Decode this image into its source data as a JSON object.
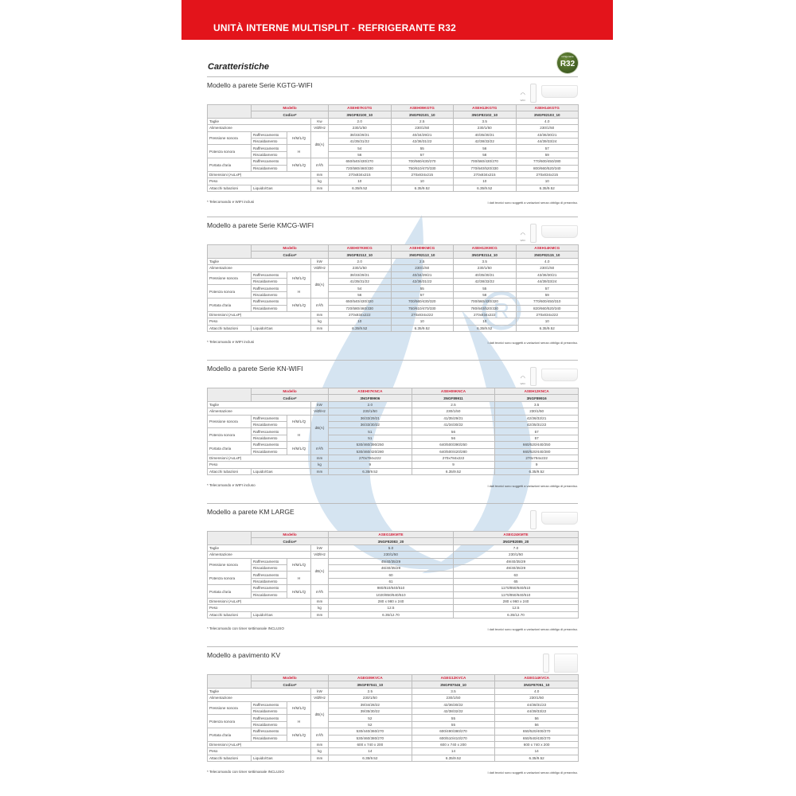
{
  "header": {
    "title": "UNITÀ INTERNE MULTISPLIT - REFRIGERANTE R32"
  },
  "page_title": "Caratteristiche",
  "badge": {
    "top": "refrigerante",
    "text": "R32",
    "color": "#3d5a20"
  },
  "accent_color": "#e3141b",
  "wifi_label": "WIFI",
  "table_header": {
    "modello": "Modello",
    "codice": "Codice*"
  },
  "row_labels": {
    "taglie": "Taglie",
    "alimentazione": "Alimentazione",
    "pressione": "Pressione sonora",
    "potenza": "Potenza sonora",
    "portata": "Portata d'aria",
    "dimensioni": "Dimensioni (AxLxP)",
    "peso": "Peso",
    "attacchi": "Attacchi tubazioni",
    "raff": "Raffrescamento",
    "risc": "Riscaldamento",
    "hmlq": "H/M/L/Q",
    "h": "H",
    "liquido": "Liquido/Gas",
    "u_kw": "kW",
    "u_v": "V/Ø/Hz",
    "u_db": "dB(A)",
    "u_m3": "m³/h",
    "u_mm": "mm",
    "u_kg": "kg"
  },
  "disclaimer": "I dati tecnici sono soggetti a variazioni senza obbligo di preavviso.",
  "sections": [
    {
      "title": "Modello a parete Serie KGTG-WIFI",
      "wifi": true,
      "image": "wall-unit",
      "unit_kw": "Kw",
      "note": "* Telecomando e WIFI inclusi",
      "columns": [
        {
          "model": "ASEH07KGTG",
          "code": "3NGF82100_10",
          "taglia": "2.0",
          "alim": "230/1/50",
          "pr_raff": "38/33/29/21",
          "pr_risc": "41/35/31/22",
          "po_raff": "54",
          "po_risc": "56",
          "pt_raff": "650/540/430/270",
          "pt_risc": "720/580/460/330",
          "dim": "270x834x215",
          "peso": "10",
          "att": "6.35/9.52"
        },
        {
          "model": "ASEH09KGTG",
          "code": "3NGF82101_10",
          "taglia": "2.5",
          "alim": "230/1/50",
          "pr_raff": "40/34/29/21",
          "pr_risc": "42/36/31/22",
          "po_raff": "55",
          "po_risc": "57",
          "pt_raff": "700/560/430/270",
          "pt_risc": "750/610/470/330",
          "dim": "270x834x215",
          "peso": "10",
          "att": "6.35/9.52"
        },
        {
          "model": "ASEH12KGTG",
          "code": "3NGF82102_10",
          "taglia": "3.5",
          "alim": "230/1/50",
          "pr_raff": "40/35/30/21",
          "pr_risc": "42/38/33/22",
          "po_raff": "56",
          "po_risc": "58",
          "pt_raff": "700/560/430/270",
          "pt_risc": "770/640/520/330",
          "dim": "270x834x215",
          "peso": "10",
          "att": "6.35/9.52"
        },
        {
          "model": "ASEH14KGTG",
          "code": "3NGF82103_10",
          "taglia": "4.0",
          "alim": "230/1/50",
          "pr_raff": "43/36/30/21",
          "pr_risc": "44/39/33/24",
          "po_raff": "57",
          "po_risc": "59",
          "pt_raff": "770/600/450/280",
          "pt_risc": "800/660/520/340",
          "dim": "270x834x215",
          "peso": "10",
          "att": "6.35/9.52"
        }
      ]
    },
    {
      "title": "Modello a parete Serie KMCG-WIFI",
      "wifi": true,
      "image": "wall-unit",
      "unit_kw": "kW",
      "note": "* Telecomando e WIFI inclusi",
      "columns": [
        {
          "model": "ASEH07KMCG",
          "code": "3NGF82112_10",
          "taglia": "2.0",
          "alim": "230/1/50",
          "pr_raff": "38/33/29/21",
          "pr_risc": "41/35/31/22",
          "po_raff": "54",
          "po_risc": "56",
          "pt_raff": "650/540/430/320",
          "pt_risc": "720/580/460/330",
          "dim": "270x834x222",
          "peso": "10",
          "att": "6.35/9.52"
        },
        {
          "model": "ASEH09KMCG",
          "code": "3NGF82113_10",
          "taglia": "2.5",
          "alim": "230/1/50",
          "pr_raff": "40/34/29/21",
          "pr_risc": "42/36/31/22",
          "po_raff": "55",
          "po_risc": "57",
          "pt_raff": "700/560/430/320",
          "pt_risc": "750/610/470/330",
          "dim": "270x834x222",
          "peso": "10",
          "att": "6.35/9.52"
        },
        {
          "model": "ASEH12KMCG",
          "code": "3NGF82114_10",
          "taglia": "3.5",
          "alim": "230/1/50",
          "pr_raff": "40/35/30/21",
          "pr_risc": "42/38/33/22",
          "po_raff": "55",
          "po_risc": "58",
          "pt_raff": "700/560/430/320",
          "pt_risc": "780/640/520/330",
          "dim": "270x834x222",
          "peso": "10",
          "att": "6.35/9.52"
        },
        {
          "model": "ASEH14KMCG",
          "code": "3NGF82115_10",
          "taglia": "4.0",
          "alim": "230/1/50",
          "pr_raff": "43/36/30/21",
          "pr_risc": "44/39/33/24",
          "po_raff": "57",
          "po_risc": "59",
          "pt_raff": "770/600/450/310",
          "pt_risc": "820/660/520/340",
          "dim": "270x834x222",
          "peso": "10",
          "att": "6.35/9.52"
        }
      ]
    },
    {
      "title": "Modello a parete Serie KN-WIFI",
      "wifi": true,
      "image": "wall-unit",
      "unit_kw": "kW",
      "note": "* Telecomando e WIFI incluso",
      "columns": [
        {
          "model": "ASEH07KNCA",
          "code": "3NGF89906",
          "taglia": "2.0",
          "alim": "230/1/50",
          "pr_raff": "36/33/29/21",
          "pr_risc": "36/33/30/22",
          "po_raff": "51",
          "po_risc": "51",
          "pt_raff": "530/460/390/250",
          "pt_risc": "530/460/420/280",
          "dim": "270x784x222",
          "peso": "9",
          "att": "6.35/9.52"
        },
        {
          "model": "ASEH09KNCA",
          "code": "3NGF89911",
          "taglia": "2.5",
          "alim": "230/1/50",
          "pr_raff": "41/35/29/21",
          "pr_risc": "41/34/30/22",
          "po_raff": "56",
          "po_risc": "56",
          "pt_raff": "640/500/390/250",
          "pt_risc": "640/500/420/280",
          "dim": "270x784x222",
          "peso": "9",
          "att": "6.35/9.52"
        },
        {
          "model": "ASEH12KNCA",
          "code": "3NGF89916",
          "taglia": "3.5",
          "alim": "230/1/50",
          "pr_raff": "42/36/32/21",
          "pr_risc": "42/35/31/22",
          "po_raff": "57",
          "po_risc": "57",
          "pt_raff": "660/520/440/250",
          "pt_risc": "660/520/440/280",
          "dim": "270x784x222",
          "peso": "9",
          "att": "6.35/9.52"
        }
      ]
    },
    {
      "title": "Modello a parete KM LARGE",
      "wifi": false,
      "image": "wall-unit",
      "unit_kw": "kW",
      "note": "* Telecomando con timer settimanale INCLUSO",
      "columns": [
        {
          "model": "ASEG18KMTE",
          "code": "3NGF82083_20",
          "taglia": "5.0",
          "alim": "230/1/50",
          "pr_raff": "45/40/35/29",
          "pr_risc": "46/40/35/29",
          "po_raff": "60",
          "po_risc": "61",
          "pt_raff": "980/810/640/510",
          "pt_risc": "1020/850/640/510",
          "dim": "280 x 980 x 240",
          "peso": "12.5",
          "att": "6.35/12.70"
        },
        {
          "model": "ASEG24KMTE",
          "code": "3NGF82085_20",
          "taglia": "7.0",
          "alim": "230/1/50",
          "pr_raff": "49/40/35/29",
          "pr_risc": "49/40/35/29",
          "po_raff": "63",
          "po_risc": "65",
          "pt_raff": "1170/850/640/510",
          "pt_risc": "1170/850/640/510",
          "dim": "280 x 960 x 240",
          "peso": "12.5",
          "att": "6.35/12.70"
        }
      ]
    },
    {
      "title": "Modello a pavimento KV",
      "wifi": false,
      "image": "floor-unit",
      "unit_kw": "kW",
      "note": "* Telecomando con timer settimanale INCLUSO",
      "columns": [
        {
          "model": "AGEG09KVCA",
          "code": "3NGF87041_10",
          "taglia": "2.5",
          "alim": "230/1/50",
          "pr_raff": "39/34/28/22",
          "pr_risc": "39/35/30/22",
          "po_raff": "52",
          "po_risc": "52",
          "pt_raff": "530/440/360/270",
          "pt_risc": "530/460/380/270",
          "dim": "600 x 740 x 200",
          "peso": "14",
          "att": "6.35/9.52"
        },
        {
          "model": "AGEG12KVCA",
          "code": "3NGF87046_10",
          "taglia": "3.5",
          "alim": "230/1/50",
          "pr_raff": "42/36/30/22",
          "pr_risc": "42/38/32/22",
          "po_raff": "55",
          "po_risc": "55",
          "pt_raff": "600/490/380/270",
          "pt_risc": "600/510/410/270",
          "dim": "600 x 740 x 200",
          "peso": "14",
          "att": "6.35/9.52"
        },
        {
          "model": "AGEG14KVCA",
          "code": "3NGF87051_10",
          "taglia": "4.0",
          "alim": "230/1/50",
          "pr_raff": "44/38/31/22",
          "pr_risc": "44/39/33/22",
          "po_raff": "56",
          "po_risc": "56",
          "pt_raff": "650/520/400/270",
          "pt_risc": "650/540/430/270",
          "dim": "600 x 740 x 200",
          "peso": "14",
          "att": "6.35/9.52"
        }
      ]
    }
  ]
}
